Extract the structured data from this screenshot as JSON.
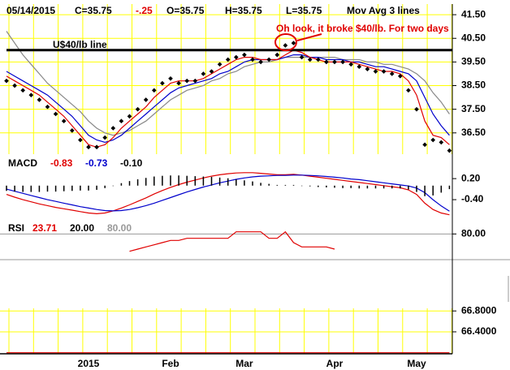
{
  "header": {
    "date": "05/14/2015",
    "close": "C=35.75",
    "change": "-.25",
    "open": "O=35.75",
    "high": "H=35.75",
    "low": "L=35.75",
    "study": "Mov Avg 3 lines"
  },
  "chart_data": [
    {
      "type": "line",
      "grid": true,
      "grid_color": "#ffff00",
      "categories": [
        null,
        null,
        null,
        null,
        null,
        null,
        null,
        null,
        null,
        null,
        "2015",
        null,
        null,
        null,
        null,
        null,
        null,
        null,
        null,
        null,
        "Feb",
        null,
        null,
        null,
        null,
        null,
        null,
        null,
        null,
        "Mar",
        null,
        null,
        null,
        null,
        null,
        null,
        null,
        null,
        null,
        null,
        "Apr",
        null,
        null,
        null,
        null,
        null,
        null,
        null,
        null,
        null,
        "May",
        null,
        null,
        null,
        null
      ],
      "ylim": [
        35.6,
        41.95
      ],
      "yticks": [
        {
          "value": 41.5,
          "label": "41.50"
        },
        {
          "value": 40.5,
          "label": "40.50"
        },
        {
          "value": 39.5,
          "label": "39.50"
        },
        {
          "value": 38.5,
          "label": "38.50"
        },
        {
          "value": 37.5,
          "label": "37.50"
        },
        {
          "value": 36.5,
          "label": "36.50"
        }
      ],
      "hlines": [
        {
          "value": 40,
          "label": "U$40/lb line",
          "color": "#000000"
        }
      ],
      "annotation": {
        "text": "Oh look, it broke $40/lb. For two days",
        "color": "#e00000"
      },
      "series": [
        {
          "color": "#888888",
          "marker": "line",
          "values": [
            40.8,
            40.3,
            39.8,
            39.4,
            39.0,
            38.6,
            38.3,
            38.0,
            37.7,
            37.4,
            37.0,
            36.7,
            36.5,
            36.4,
            36.5,
            36.6,
            36.8,
            37.0,
            37.3,
            37.6,
            37.9,
            38.1,
            38.3,
            38.4,
            38.5,
            38.7,
            38.8,
            39.0,
            39.1,
            39.3,
            39.4,
            39.5,
            39.5,
            39.6,
            39.7,
            39.7,
            39.7,
            39.7,
            39.7,
            39.7,
            39.7,
            39.6,
            39.6,
            39.6,
            39.5,
            39.5,
            39.4,
            39.4,
            39.3,
            39.2,
            39.0,
            38.7,
            38.2,
            37.8,
            37.3
          ]
        },
        {
          "color": "#0000cc",
          "marker": "line",
          "values": [
            39.1,
            38.9,
            38.7,
            38.5,
            38.3,
            38.1,
            37.8,
            37.5,
            37.2,
            36.8,
            36.4,
            36.2,
            36.1,
            36.2,
            36.4,
            36.7,
            37.0,
            37.3,
            37.6,
            37.9,
            38.2,
            38.4,
            38.5,
            38.6,
            38.7,
            38.8,
            39.0,
            39.1,
            39.3,
            39.5,
            39.6,
            39.6,
            39.6,
            39.6,
            39.7,
            39.8,
            39.8,
            39.7,
            39.7,
            39.6,
            39.6,
            39.6,
            39.5,
            39.5,
            39.4,
            39.3,
            39.3,
            39.2,
            39.1,
            39.0,
            38.7,
            38.0,
            37.3,
            36.8,
            36.4
          ]
        },
        {
          "color": "#e00000",
          "marker": "line",
          "values": [
            38.9,
            38.7,
            38.5,
            38.3,
            38.1,
            37.8,
            37.5,
            37.2,
            36.8,
            36.4,
            36.0,
            35.9,
            36.0,
            36.3,
            36.7,
            37.0,
            37.3,
            37.6,
            38.0,
            38.3,
            38.6,
            38.7,
            38.7,
            38.7,
            38.8,
            39.0,
            39.2,
            39.4,
            39.6,
            39.7,
            39.7,
            39.6,
            39.6,
            39.6,
            39.8,
            40.0,
            39.9,
            39.7,
            39.6,
            39.5,
            39.5,
            39.5,
            39.5,
            39.4,
            39.3,
            39.2,
            39.1,
            39.1,
            39.0,
            38.7,
            38.1,
            37.0,
            36.4,
            36.3,
            36.0
          ]
        },
        {
          "color": "#000000",
          "marker": "dots",
          "values": [
            38.7,
            38.5,
            38.3,
            38.1,
            37.9,
            37.6,
            37.3,
            37.0,
            36.6,
            36.2,
            35.9,
            35.9,
            36.3,
            36.7,
            37.0,
            37.2,
            37.5,
            37.9,
            38.3,
            38.6,
            38.8,
            38.6,
            38.7,
            38.7,
            39.0,
            39.1,
            39.4,
            39.6,
            39.7,
            39.8,
            39.6,
            39.5,
            39.6,
            39.8,
            40.2,
            40.3,
            39.7,
            39.6,
            39.6,
            39.5,
            39.5,
            39.5,
            39.4,
            39.3,
            39.2,
            39.1,
            39.1,
            39.0,
            38.9,
            38.3,
            37.5,
            36.0,
            36.2,
            36.1,
            35.75
          ]
        }
      ]
    },
    {
      "type": "line",
      "title": "MACD",
      "grid": false,
      "ylim": [
        -1.0,
        0.55
      ],
      "yticks": [
        {
          "value": 0.2,
          "label": "0.20"
        },
        {
          "value": -0.4,
          "label": "-0.40"
        }
      ],
      "series": [
        {
          "name": "-0.83",
          "color": "#e00000",
          "marker": "line",
          "values": [
            -0.25,
            -0.33,
            -0.4,
            -0.46,
            -0.52,
            -0.57,
            -0.62,
            -0.66,
            -0.7,
            -0.74,
            -0.78,
            -0.8,
            -0.78,
            -0.72,
            -0.64,
            -0.55,
            -0.45,
            -0.35,
            -0.24,
            -0.14,
            -0.05,
            0.03,
            0.1,
            0.16,
            0.22,
            0.27,
            0.31,
            0.34,
            0.36,
            0.37,
            0.37,
            0.35,
            0.33,
            0.31,
            0.31,
            0.32,
            0.3,
            0.27,
            0.24,
            0.21,
            0.18,
            0.15,
            0.12,
            0.09,
            0.06,
            0.03,
            0.0,
            -0.03,
            -0.06,
            -0.12,
            -0.25,
            -0.5,
            -0.68,
            -0.78,
            -0.83
          ]
        },
        {
          "name": "-0.73",
          "color": "#0000cc",
          "marker": "line",
          "values": [
            -0.1,
            -0.16,
            -0.22,
            -0.28,
            -0.34,
            -0.4,
            -0.45,
            -0.5,
            -0.55,
            -0.6,
            -0.64,
            -0.68,
            -0.71,
            -0.72,
            -0.71,
            -0.68,
            -0.63,
            -0.57,
            -0.5,
            -0.42,
            -0.34,
            -0.26,
            -0.18,
            -0.11,
            -0.04,
            0.02,
            0.08,
            0.13,
            0.18,
            0.22,
            0.25,
            0.27,
            0.28,
            0.29,
            0.29,
            0.3,
            0.3,
            0.29,
            0.28,
            0.26,
            0.24,
            0.22,
            0.19,
            0.17,
            0.14,
            0.11,
            0.08,
            0.05,
            0.02,
            -0.01,
            -0.07,
            -0.2,
            -0.4,
            -0.58,
            -0.73
          ]
        },
        {
          "name": "-0.10",
          "color": "#000000",
          "marker": "bars",
          "values": [
            -0.15,
            -0.17,
            -0.18,
            -0.18,
            -0.18,
            -0.17,
            -0.17,
            -0.16,
            -0.15,
            -0.14,
            -0.14,
            -0.12,
            -0.07,
            0.0,
            0.07,
            0.13,
            0.18,
            0.22,
            0.26,
            0.28,
            0.29,
            0.29,
            0.28,
            0.27,
            0.26,
            0.25,
            0.23,
            0.21,
            0.18,
            0.15,
            0.12,
            0.08,
            0.05,
            0.02,
            0.02,
            0.02,
            0.0,
            -0.02,
            -0.04,
            -0.05,
            -0.06,
            -0.07,
            -0.07,
            -0.08,
            -0.08,
            -0.08,
            -0.08,
            -0.08,
            -0.08,
            -0.11,
            -0.18,
            -0.3,
            -0.28,
            -0.2,
            -0.1
          ]
        }
      ]
    },
    {
      "type": "line",
      "title": "RSI",
      "grid": false,
      "ylim": [
        70,
        85
      ],
      "yticks": [
        {
          "value": 80,
          "label": "80.00"
        }
      ],
      "levels": [
        {
          "value": 20,
          "label": "20.00",
          "color": "#000000"
        },
        {
          "value": 80,
          "label": "80.00",
          "color": "#999999"
        }
      ],
      "series": [
        {
          "name": "23.71",
          "color": "#e00000",
          "marker": "line",
          "values": [
            null,
            null,
            null,
            null,
            null,
            null,
            null,
            null,
            null,
            null,
            null,
            null,
            null,
            null,
            null,
            72,
            73,
            74,
            75,
            76,
            77,
            77,
            78,
            78,
            78,
            78,
            78,
            78,
            81,
            81,
            81,
            81,
            78,
            78,
            81,
            76,
            74,
            74,
            74,
            74,
            73,
            null,
            null,
            null,
            null,
            null,
            null,
            null,
            null,
            null,
            null,
            null,
            null,
            null,
            null
          ]
        }
      ]
    },
    {
      "type": "line",
      "grid": true,
      "grid_color": "#ffff00",
      "ylim": [
        65.98,
        66.85
      ],
      "yticks": [
        {
          "value": 66.8,
          "label": "66.8000"
        },
        {
          "value": 66.4,
          "label": "66.4000"
        }
      ],
      "series": [
        {
          "color": "#e00000",
          "marker": "line",
          "values": [
            66.0,
            66.0,
            66.0,
            66.0,
            66.0,
            66.0,
            66.0,
            66.0,
            66.0,
            66.0,
            66.0,
            66.0,
            66.0,
            66.0,
            66.0,
            66.0,
            66.0,
            66.0,
            66.0,
            66.0,
            66.0,
            66.0,
            66.0,
            66.0,
            66.0,
            66.0,
            66.0,
            66.0,
            66.0,
            66.0,
            66.0,
            66.0,
            66.0,
            66.0,
            66.0,
            66.0,
            66.0,
            66.0,
            66.0,
            66.0,
            66.0,
            66.0,
            66.0,
            66.0,
            66.0,
            66.0,
            66.0,
            66.0,
            66.0,
            66.0,
            66.0,
            66.0,
            66.0,
            66.0,
            66.0
          ]
        }
      ]
    }
  ]
}
